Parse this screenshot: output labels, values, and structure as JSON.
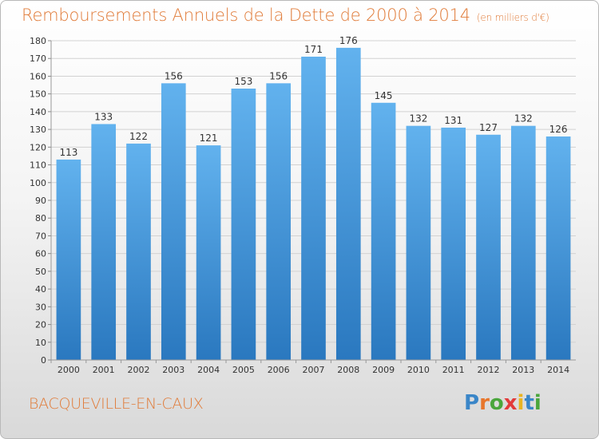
{
  "title": "Remboursements Annuels de la Dette de 2000 à 2014",
  "subtitle": "(en milliers d'€)",
  "commune": "BACQUEVILLE-EN-CAUX",
  "brand": {
    "letters": [
      "P",
      "r",
      "o",
      "x",
      "i",
      "t",
      "i"
    ],
    "colors": [
      "#3a86c8",
      "#e8762c",
      "#4aa63c",
      "#e23b3b",
      "#e9b422",
      "#3a86c8",
      "#4aa63c"
    ]
  },
  "colors": {
    "bar_light": "#62b2ee",
    "bar_dark": "#2a78bf",
    "title": "#e07a37"
  },
  "chart_data": {
    "type": "bar",
    "title": "Remboursements Annuels de la Dette de 2000 à 2014",
    "subtitle": "(en milliers d'€)",
    "categories": [
      "2000",
      "2001",
      "2002",
      "2003",
      "2004",
      "2005",
      "2006",
      "2007",
      "2008",
      "2009",
      "2010",
      "2011",
      "2012",
      "2013",
      "2014"
    ],
    "values": [
      113,
      133,
      122,
      156,
      121,
      153,
      156,
      171,
      176,
      145,
      132,
      131,
      127,
      132,
      126
    ],
    "ylim": [
      0,
      180
    ],
    "ytick_step": 10,
    "grid": "horizontal",
    "xlabel": "",
    "ylabel": ""
  }
}
